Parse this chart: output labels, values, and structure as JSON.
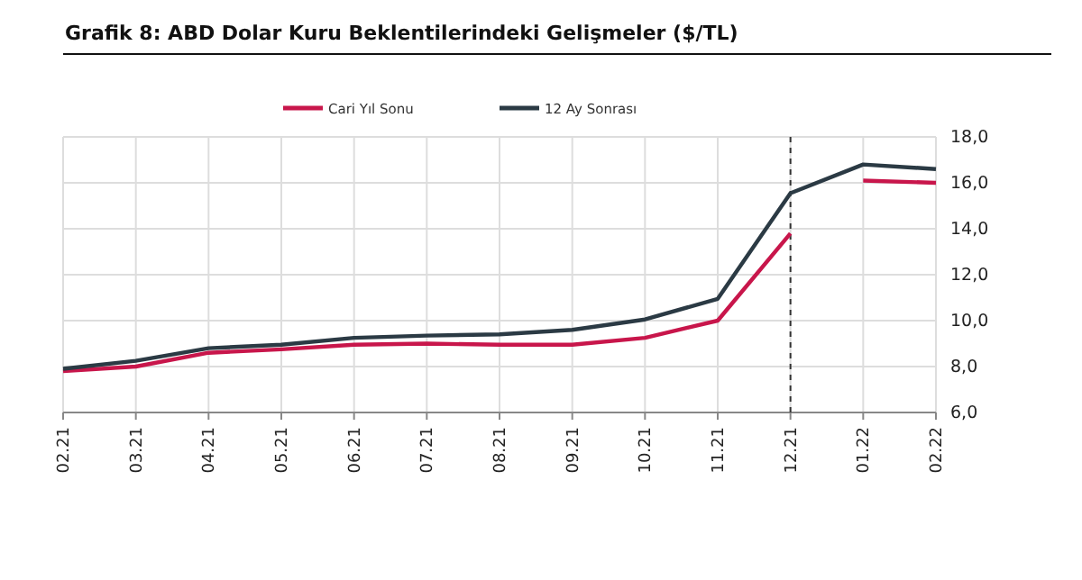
{
  "chart_data": {
    "type": "line",
    "title": "Grafik 8: ABD Dolar Kuru Beklentilerindeki Gelişmeler ($/TL)",
    "categories": [
      "02.21",
      "03.21",
      "04.21",
      "05.21",
      "06.21",
      "07.21",
      "08.21",
      "09.21",
      "10.21",
      "11.21",
      "12.21",
      "01.22",
      "02.22"
    ],
    "series": [
      {
        "name": "Cari Yıl Sonu",
        "color": "#c8164b",
        "values": [
          7.8,
          8.0,
          8.6,
          8.75,
          8.95,
          9.0,
          8.95,
          8.95,
          9.25,
          10.0,
          13.8,
          null,
          null
        ]
      },
      {
        "color": "#c8164b",
        "values": [
          null,
          null,
          null,
          null,
          null,
          null,
          null,
          null,
          null,
          null,
          null,
          16.1,
          16.0
        ]
      },
      {
        "name": "12 Ay Sonrası",
        "color": "#2b3a44",
        "values": [
          7.9,
          8.25,
          8.8,
          8.95,
          9.25,
          9.35,
          9.4,
          9.6,
          10.05,
          10.95,
          15.55,
          16.8,
          16.6
        ]
      }
    ],
    "ylim": [
      6,
      18
    ],
    "yticks": [
      {
        "value": 6,
        "label": "6,0"
      },
      {
        "value": 8,
        "label": "8,0"
      },
      {
        "value": 10,
        "label": "10,0"
      },
      {
        "value": 12,
        "label": "12,0"
      },
      {
        "value": 14,
        "label": "14,0"
      },
      {
        "value": 16,
        "label": "16,0"
      },
      {
        "value": 18,
        "label": "18,0"
      }
    ],
    "grid": true,
    "legend": "top",
    "line_style": "solid",
    "marker": "none",
    "ref_lines": [
      {
        "axis": "x",
        "value": "12.21",
        "color": "#333333",
        "line_style": "dashed"
      }
    ]
  }
}
